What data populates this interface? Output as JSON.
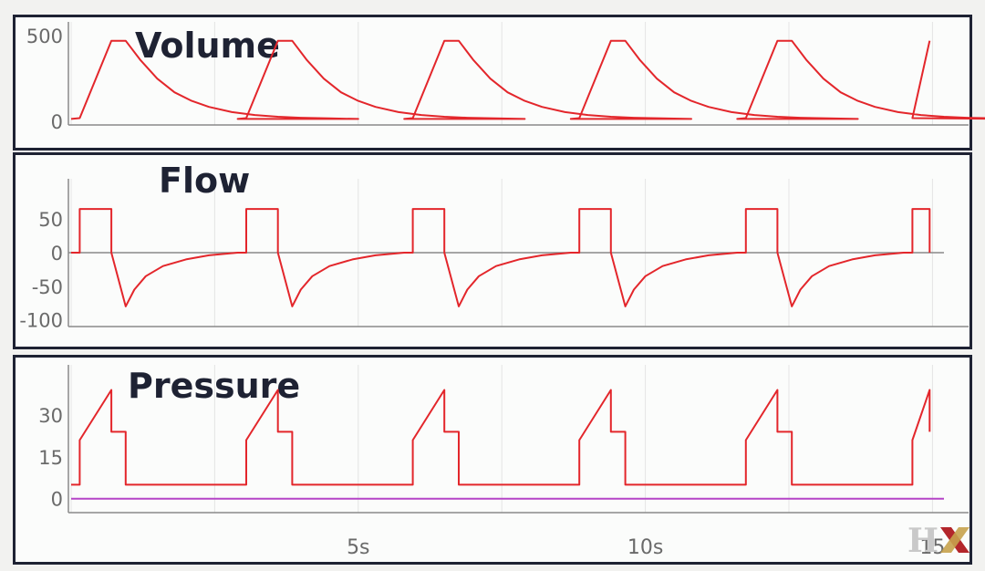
{
  "colors": {
    "trace": "#e3262b",
    "baseline_pressure": "#b545c7",
    "frame": "#1e2233",
    "axis": "#8a8a8a",
    "grid": "#e4e4e4",
    "logo_grey": "#c9c9c9",
    "logo_red": "#b3262b",
    "logo_gold": "#c7a24d"
  },
  "logo": {
    "text": "HX"
  },
  "chart_data": [
    {
      "type": "line",
      "title": "Volume",
      "xlabel": "",
      "ylabel": "",
      "yticks": [
        "500",
        "0"
      ],
      "ytick_values": [
        500,
        0
      ],
      "ylim": [
        -20,
        580
      ],
      "xlim": [
        0,
        15.2
      ],
      "grid": true,
      "series": [
        {
          "values_note": "piecewise",
          "x": [
            0,
            0.15,
            0.7,
            0.95,
            1.2,
            1.5,
            1.8,
            2.1,
            2.4,
            2.8,
            3.2,
            3.6,
            4.0,
            4.5,
            5.0
          ],
          "y": [
            15,
            20,
            470,
            470,
            360,
            250,
            170,
            120,
            85,
            55,
            38,
            28,
            22,
            18,
            15
          ]
        }
      ],
      "cycle_period": 2.9,
      "cycles": 5
    },
    {
      "type": "line",
      "title": "Flow",
      "xlabel": "",
      "ylabel": "",
      "yticks": [
        "50",
        "0",
        "-50",
        "-100"
      ],
      "ytick_values": [
        50,
        0,
        -50,
        -100
      ],
      "ylim": [
        -110,
        110
      ],
      "xlim": [
        0,
        15.2
      ],
      "grid": true,
      "series": [
        {
          "x": [
            0,
            0.15,
            0.15,
            0.7,
            0.7,
            0.95,
            1.1,
            1.3,
            1.6,
            2.0,
            2.4,
            2.9
          ],
          "y": [
            0,
            0,
            65,
            65,
            0,
            -80,
            -55,
            -35,
            -20,
            -10,
            -4,
            0
          ]
        }
      ],
      "cycle_period": 2.9,
      "cycles": 5
    },
    {
      "type": "line",
      "title": "Pressure",
      "xlabel": "",
      "ylabel": "",
      "yticks": [
        "30",
        "15",
        "0"
      ],
      "ytick_values": [
        30,
        15,
        0
      ],
      "ylim": [
        -5,
        48
      ],
      "xlim": [
        0,
        15.2
      ],
      "grid": true,
      "xticks": [
        "5s",
        "10s",
        "15"
      ],
      "xtick_values": [
        5,
        10,
        15
      ],
      "series": [
        {
          "x": [
            0,
            0.15,
            0.15,
            0.7,
            0.7,
            0.95,
            0.95,
            2.9
          ],
          "y": [
            5,
            5,
            21,
            39,
            24,
            24,
            5,
            5
          ]
        },
        {
          "x": [
            0,
            15.2
          ],
          "y": [
            0,
            0
          ]
        }
      ],
      "cycle_period": 2.9,
      "cycles": 5
    }
  ]
}
